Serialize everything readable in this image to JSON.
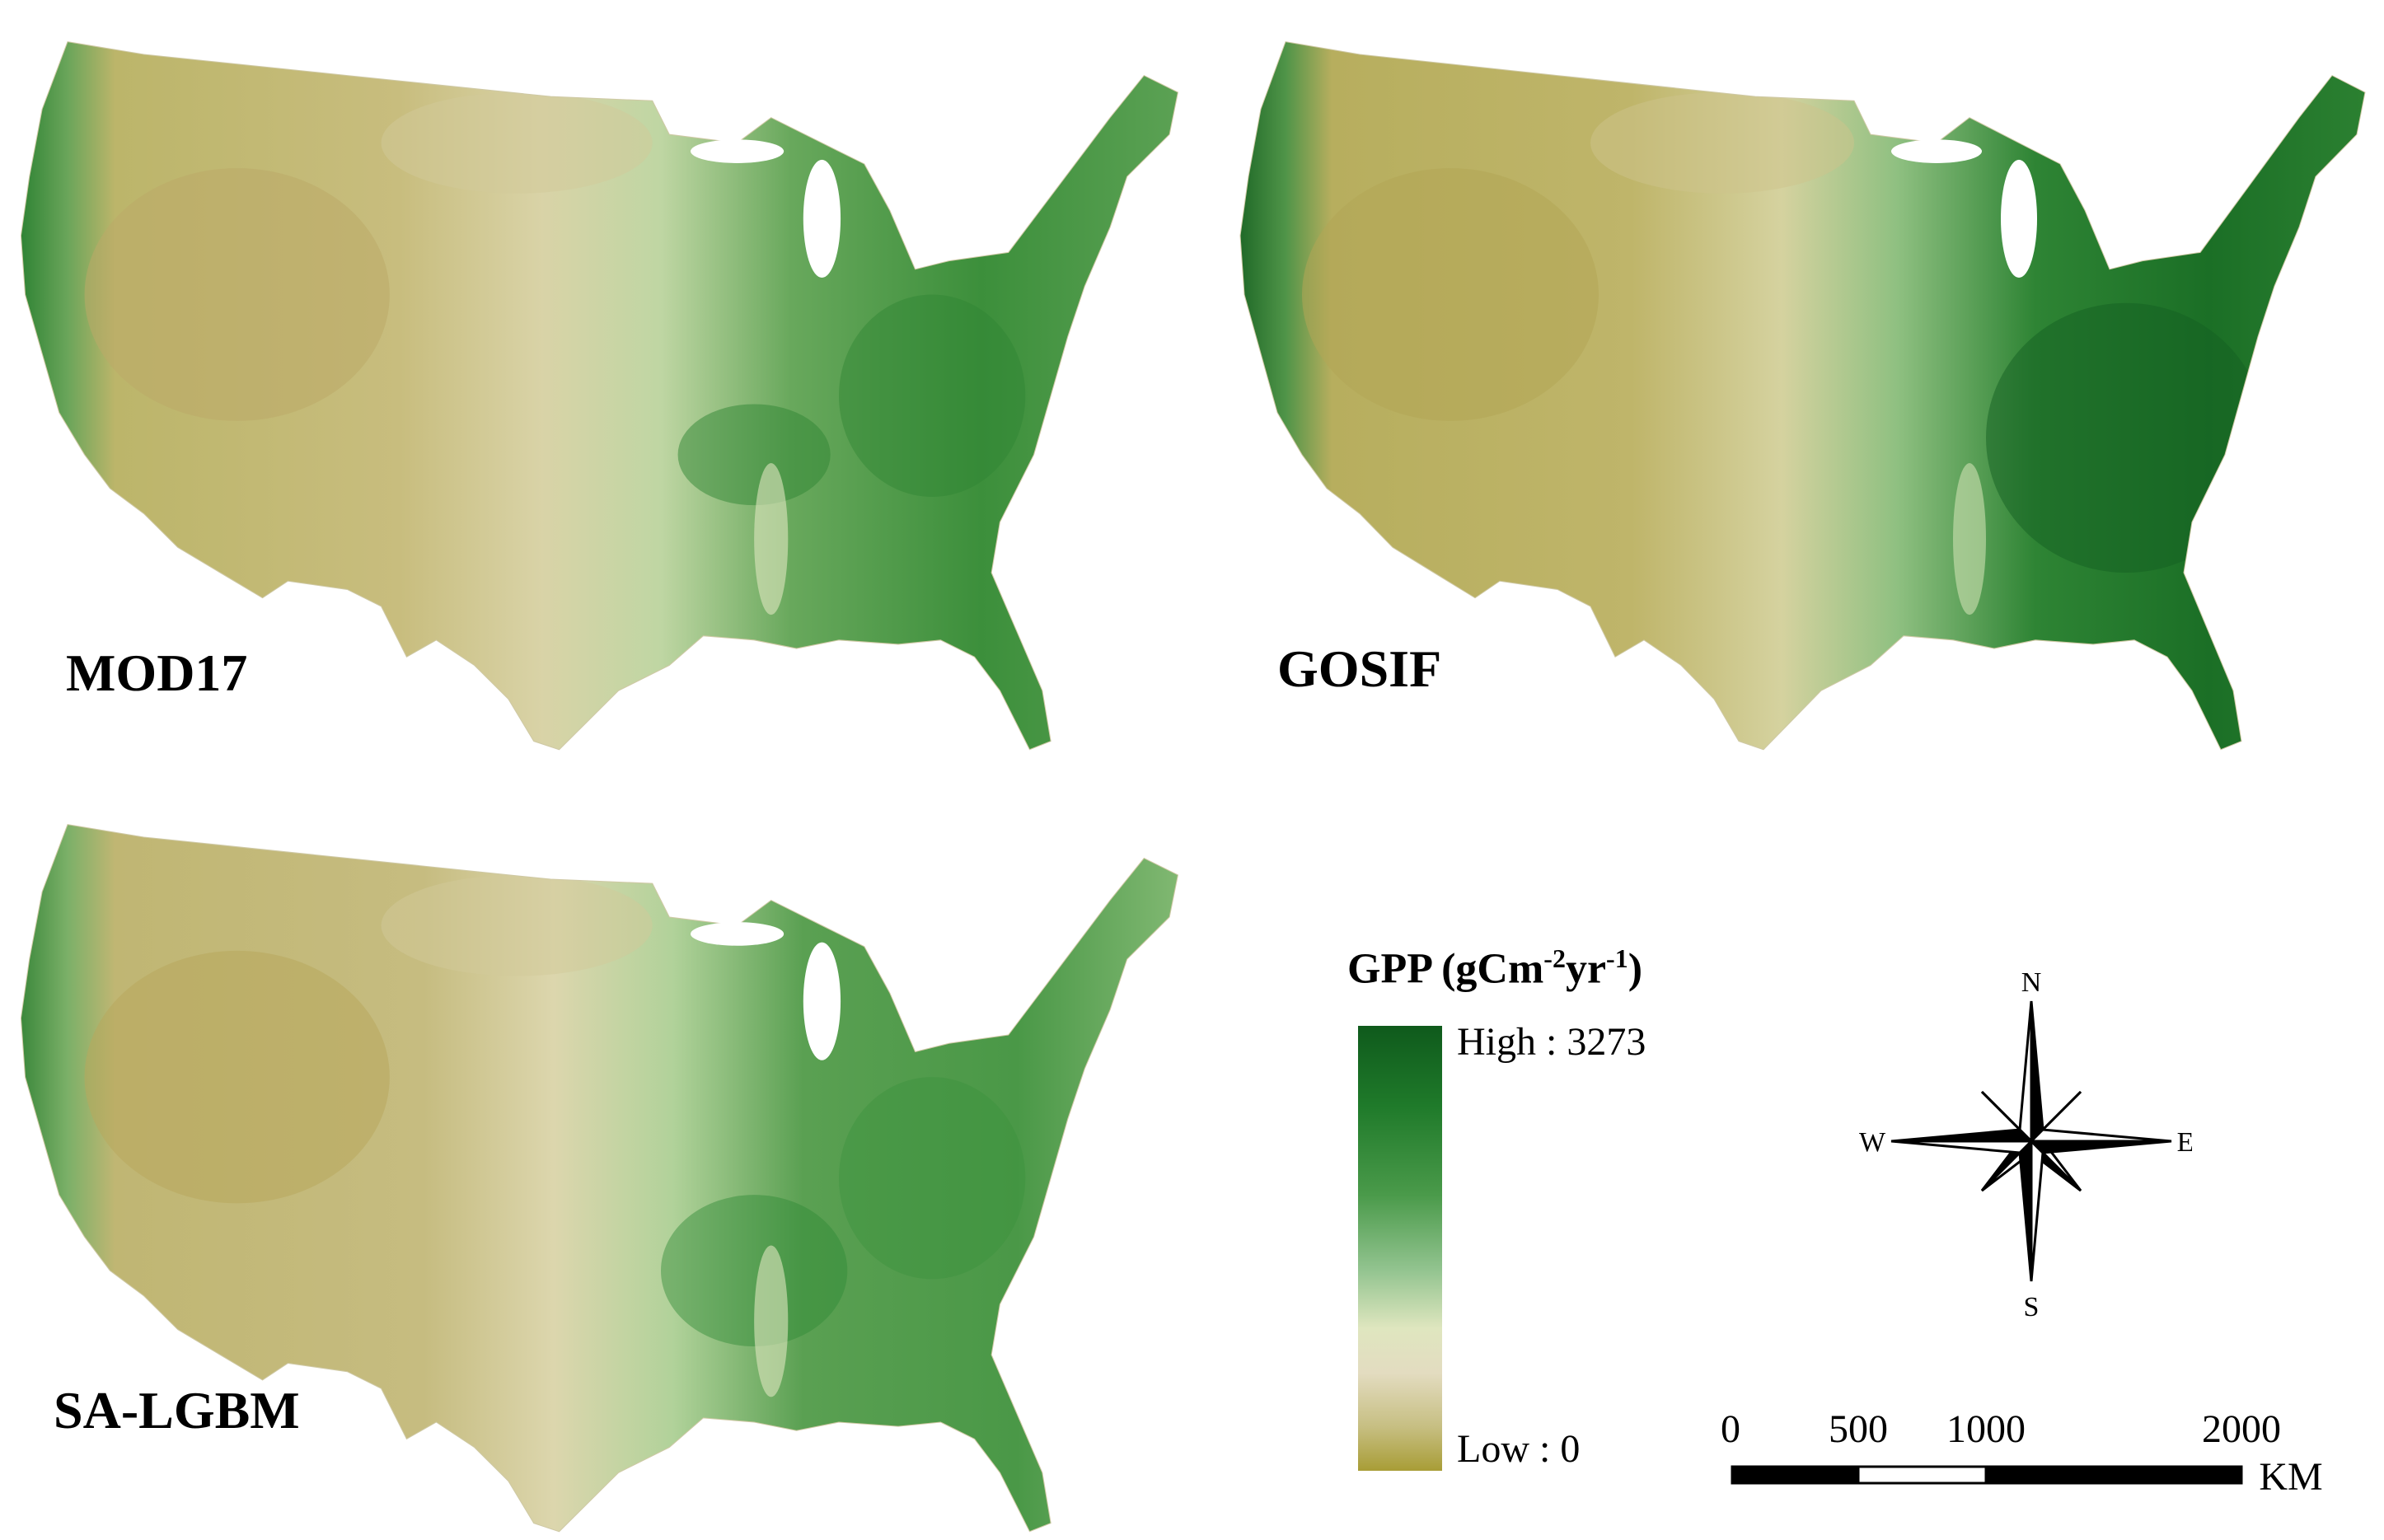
{
  "panels": [
    {
      "label": "MOD17"
    },
    {
      "label": "GOSIF"
    },
    {
      "label": "SA-LGBM"
    }
  ],
  "legend": {
    "title_main": "GPP (gCm",
    "title_sup1": "-2",
    "title_mid": "yr",
    "title_sup2": "-1",
    "title_end": ")",
    "high_label": "High : 3273",
    "low_label": "Low : 0",
    "ramp_colors": [
      "#0f5a1c",
      "#1f7a2a",
      "#4a9a4a",
      "#93c490",
      "#dfe6bf",
      "#e3dcc0",
      "#c7bf83",
      "#a89d36"
    ]
  },
  "compass": {
    "n": "N",
    "s": "S",
    "e": "E",
    "w": "W"
  },
  "scale_bar": {
    "ticks": [
      "0",
      "500",
      "1000",
      "2000"
    ],
    "unit": "KM"
  }
}
